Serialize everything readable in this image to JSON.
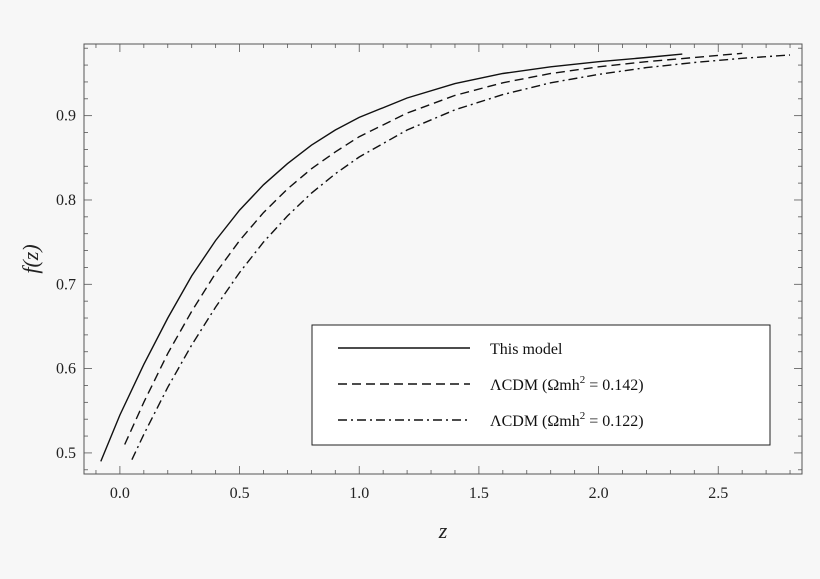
{
  "chart_data": {
    "type": "line",
    "title": "",
    "xlabel": "z",
    "ylabel": "f(z)",
    "xlim": [
      -0.15,
      2.85
    ],
    "ylim": [
      0.475,
      0.985
    ],
    "xticks": [
      0.0,
      0.5,
      1.0,
      1.5,
      2.0,
      2.5
    ],
    "xtick_labels": [
      "0.0",
      "0.5",
      "1.0",
      "1.5",
      "2.0",
      "2.5"
    ],
    "yticks": [
      0.5,
      0.6,
      0.7,
      0.8,
      0.9
    ],
    "ytick_labels": [
      "0.5",
      "0.6",
      "0.7",
      "0.8",
      "0.9"
    ],
    "legend_position": "bottom-right",
    "series": [
      {
        "name": "This model",
        "style": "solid",
        "x": [
          -0.08,
          0.0,
          0.1,
          0.2,
          0.3,
          0.4,
          0.5,
          0.6,
          0.7,
          0.8,
          0.9,
          1.0,
          1.2,
          1.4,
          1.6,
          1.8,
          2.0,
          2.2,
          2.35
        ],
        "y": [
          0.49,
          0.545,
          0.605,
          0.66,
          0.71,
          0.752,
          0.788,
          0.818,
          0.843,
          0.865,
          0.883,
          0.898,
          0.921,
          0.938,
          0.95,
          0.958,
          0.964,
          0.969,
          0.973
        ]
      },
      {
        "name": "ΛCDM (Ωmh² = 0.142)",
        "label_main": "ΛCDM (Ωmh",
        "label_sup": "2",
        "label_tail": " = 0.142)",
        "style": "dashed",
        "x": [
          0.02,
          0.1,
          0.2,
          0.3,
          0.4,
          0.5,
          0.6,
          0.7,
          0.8,
          0.9,
          1.0,
          1.2,
          1.4,
          1.6,
          1.8,
          2.0,
          2.2,
          2.4,
          2.6
        ],
        "y": [
          0.51,
          0.56,
          0.618,
          0.668,
          0.713,
          0.752,
          0.785,
          0.813,
          0.837,
          0.857,
          0.875,
          0.903,
          0.924,
          0.939,
          0.95,
          0.958,
          0.964,
          0.969,
          0.974
        ]
      },
      {
        "name": "ΛCDM (Ωmh² = 0.122)",
        "label_main": "ΛCDM (Ωmh",
        "label_sup": "2",
        "label_tail": " = 0.122)",
        "style": "dashdot",
        "x": [
          0.05,
          0.1,
          0.2,
          0.3,
          0.4,
          0.5,
          0.6,
          0.7,
          0.8,
          0.9,
          1.0,
          1.2,
          1.4,
          1.6,
          1.8,
          2.0,
          2.2,
          2.4,
          2.6,
          2.8
        ],
        "y": [
          0.492,
          0.522,
          0.578,
          0.628,
          0.673,
          0.714,
          0.75,
          0.781,
          0.808,
          0.831,
          0.851,
          0.883,
          0.907,
          0.925,
          0.939,
          0.949,
          0.957,
          0.963,
          0.968,
          0.972
        ]
      }
    ]
  }
}
